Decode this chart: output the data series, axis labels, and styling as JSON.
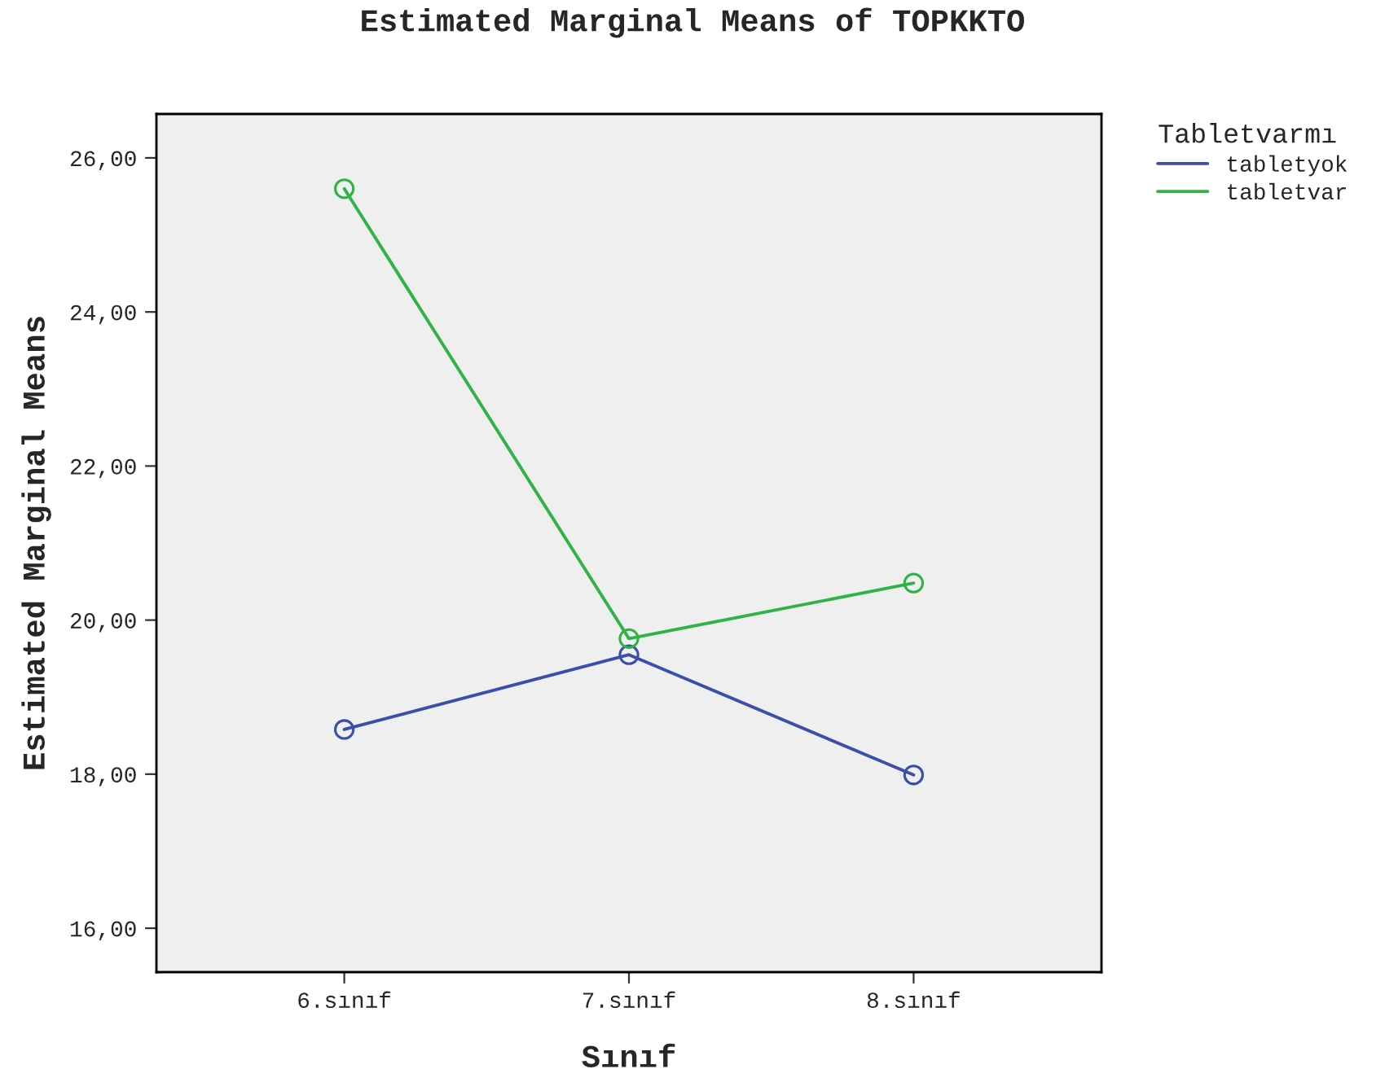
{
  "chart_data": {
    "type": "line",
    "title": "Estimated Marginal Means of TOPKKTO",
    "xlabel": "Sınıf",
    "ylabel": "Estimated Marginal Means",
    "legend_title": "Tabletvarmı",
    "categories": [
      "6.sınıf",
      "7.sınıf",
      "8.sınıf"
    ],
    "series": [
      {
        "name": "tabletyok",
        "color": "#3c4fa8",
        "values": [
          18.58,
          19.55,
          17.99
        ]
      },
      {
        "name": "tabletvar",
        "color": "#2eb344",
        "values": [
          25.6,
          19.76,
          20.48
        ]
      }
    ],
    "ylim": [
      15.43,
      26.57
    ],
    "yticks": [
      {
        "value": 16,
        "label": "16,00"
      },
      {
        "value": 18,
        "label": "18,00"
      },
      {
        "value": 20,
        "label": "20,00"
      },
      {
        "value": 22,
        "label": "22,00"
      },
      {
        "value": 24,
        "label": "24,00"
      },
      {
        "value": 26,
        "label": "26,00"
      }
    ],
    "marker": "circle",
    "line_style": "solid",
    "grid": false,
    "legend": "top right"
  }
}
